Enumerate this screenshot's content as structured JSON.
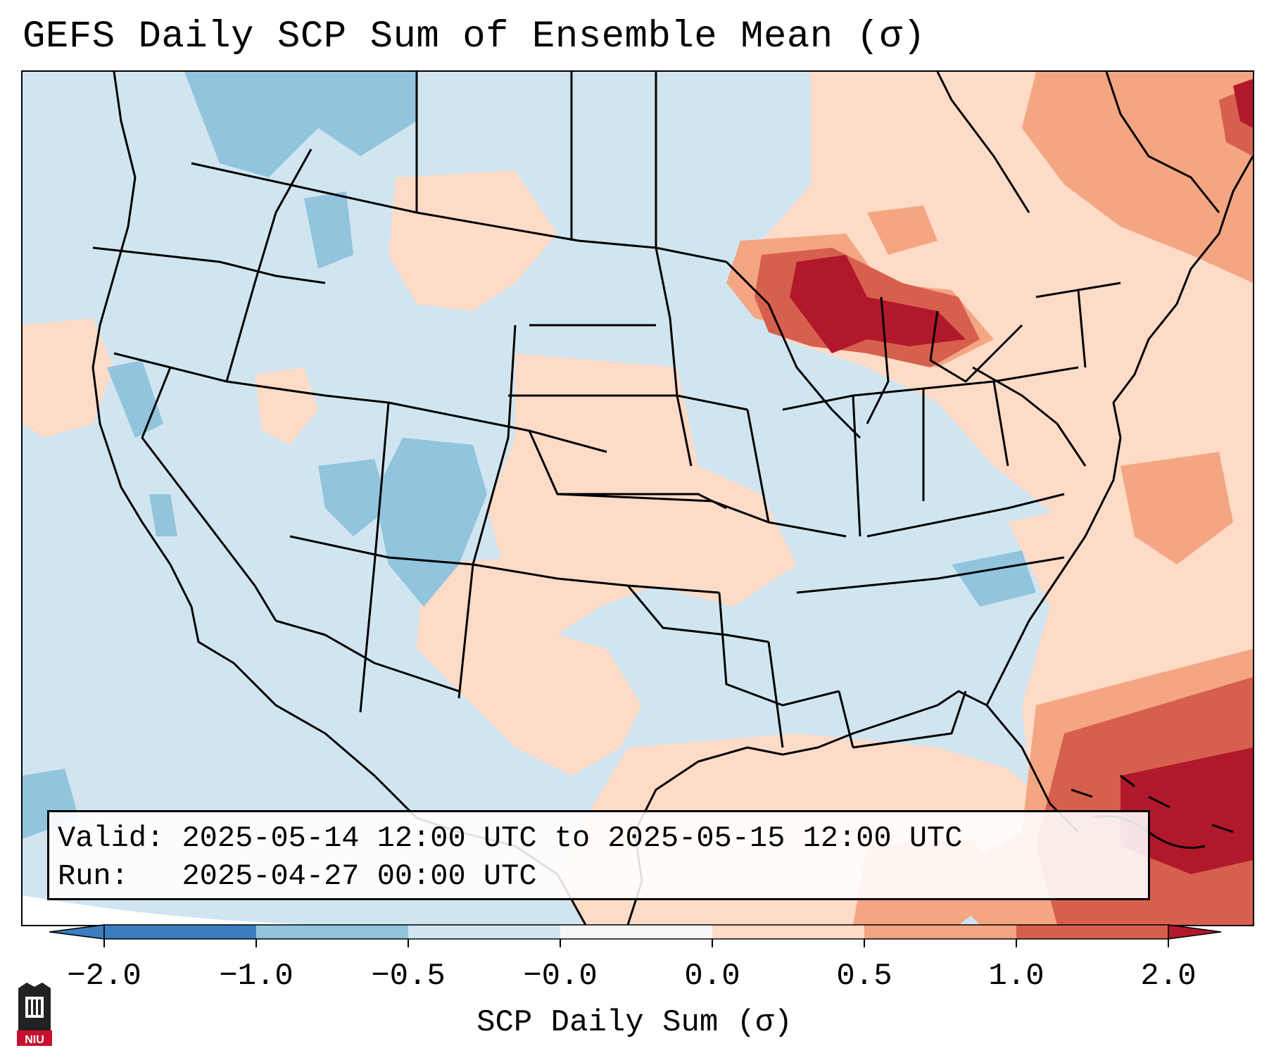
{
  "title": "GEFS Daily SCP Sum of Ensemble Mean (σ)",
  "info": {
    "valid_label": "Valid:",
    "valid_value": "2025-05-14 12:00 UTC to 2025-05-15 12:00 UTC",
    "run_label": "Run:",
    "run_value": "2025-04-27 00:00 UTC"
  },
  "colorbar": {
    "label": "SCP Daily Sum (σ)",
    "ticks": [
      "−2.0",
      "−1.0",
      "−0.5",
      "−0.0",
      "0.0",
      "0.5",
      "1.0",
      "2.0"
    ],
    "colors": [
      "#3b7ec0",
      "#92c4de",
      "#d1e5f0",
      "#f7f7f7",
      "#fddbc7",
      "#f4a582",
      "#d6604d",
      "#b2182b"
    ]
  },
  "map": {
    "background_color": "#d1e5f0",
    "extend": "both"
  },
  "logo": {
    "text": "NIU",
    "icon": "niu-castle-logo-icon"
  }
}
